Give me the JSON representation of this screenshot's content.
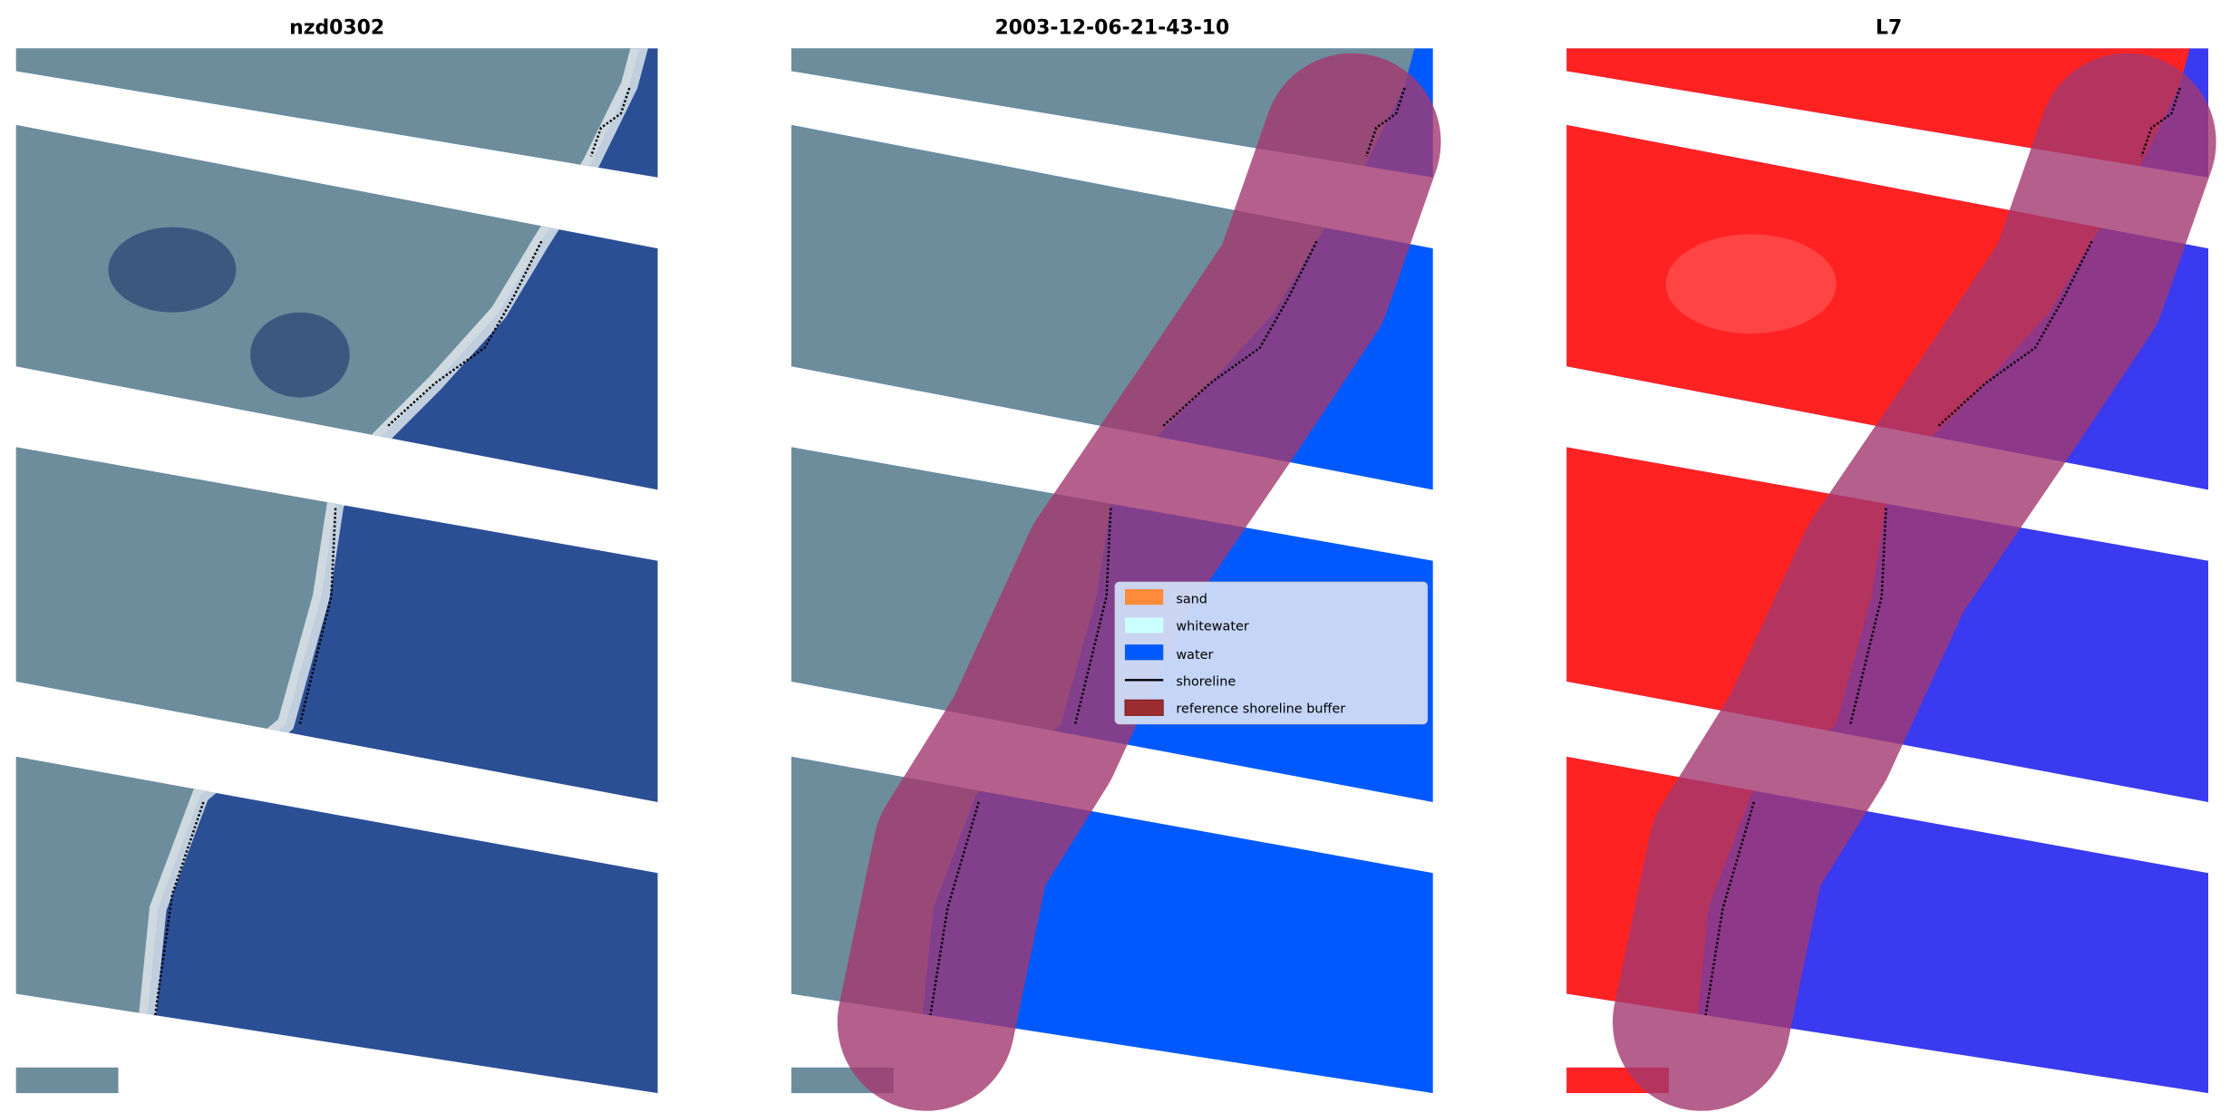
{
  "panels": [
    {
      "title": "nzd0302"
    },
    {
      "title": "2003-12-06-21-43-10"
    },
    {
      "title": "L7"
    }
  ],
  "legend": {
    "items": [
      {
        "label": "sand",
        "color": "#ff8c3a"
      },
      {
        "label": "whitewater",
        "color": "#ccffff"
      },
      {
        "label": "water",
        "color": "#0059ff"
      },
      {
        "label": "shoreline",
        "color": "#000000"
      },
      {
        "label": "reference shoreline buffer",
        "color": "#9b2c2f"
      }
    ]
  },
  "colors": {
    "rgb_land": "#6d8d9c",
    "rgb_water": "#2b4f95",
    "class_water": "#0059ff",
    "buffer": "#a3386f",
    "index_land": "#ff2222",
    "index_water": "#3a3af0"
  }
}
